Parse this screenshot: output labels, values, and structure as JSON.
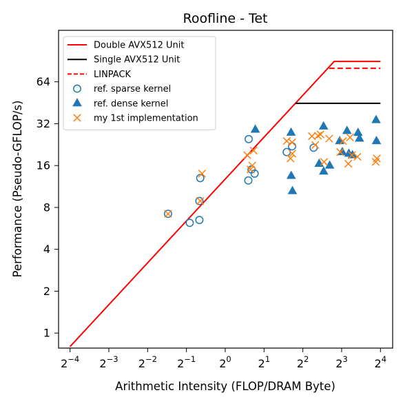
{
  "chart_data": {
    "type": "scatter",
    "title": "Roofline - Tet",
    "xlabel": "Arithmetic Intensity (FLOP/DRAM Byte)",
    "ylabel": "Performance (Pseudo-GFLOP/s)",
    "x_scale": "log2",
    "y_scale": "log2",
    "xlim": [
      0.0509,
      19.9
    ],
    "ylim": [
      0.78,
      150
    ],
    "x_ticks": [
      {
        "value": 0.0625,
        "base": "2",
        "exp": "−4"
      },
      {
        "value": 0.125,
        "base": "2",
        "exp": "−3"
      },
      {
        "value": 0.25,
        "base": "2",
        "exp": "−2"
      },
      {
        "value": 0.5,
        "base": "2",
        "exp": "−1"
      },
      {
        "value": 1,
        "base": "2",
        "exp": "0"
      },
      {
        "value": 2,
        "base": "2",
        "exp": "1"
      },
      {
        "value": 4,
        "base": "2",
        "exp": "2"
      },
      {
        "value": 8,
        "base": "2",
        "exp": "3"
      },
      {
        "value": 16,
        "base": "2",
        "exp": "4"
      }
    ],
    "y_ticks": [
      {
        "value": 1,
        "label": "1"
      },
      {
        "value": 2,
        "label": "2"
      },
      {
        "value": 4,
        "label": "4"
      },
      {
        "value": 8,
        "label": "8"
      },
      {
        "value": 16,
        "label": "16"
      },
      {
        "value": 32,
        "label": "32"
      },
      {
        "value": 64,
        "label": "64"
      }
    ],
    "grid": false,
    "legend_position": "top-left",
    "lines": [
      {
        "name": "Double AVX512 Unit",
        "color": "#ff0000",
        "dash": "solid",
        "x": [
          0.0625,
          7.0,
          16.0
        ],
        "y": [
          0.8,
          89.6,
          89.6
        ]
      },
      {
        "name": "Single AVX512 Unit",
        "color": "#000000",
        "dash": "solid",
        "x": [
          3.5,
          16.0
        ],
        "y": [
          44.8,
          44.8
        ]
      },
      {
        "name": "LINPACK",
        "color": "#ff0000",
        "dash": "dashed",
        "x": [
          6.4,
          16.0
        ],
        "y": [
          80,
          80
        ]
      }
    ],
    "series": [
      {
        "name": "ref. sparse kernel",
        "marker": "circle-open",
        "color": "#1f77b4",
        "x": [
          0.36,
          0.53,
          0.63,
          0.63,
          0.64,
          1.51,
          1.52,
          1.6,
          1.69,
          3.0,
          3.3,
          4.85
        ],
        "y": [
          7.2,
          6.2,
          6.5,
          8.9,
          13.0,
          12.5,
          24.8,
          15.0,
          14.0,
          20.0,
          22.0,
          21.5
        ]
      },
      {
        "name": "ref. dense kernel",
        "marker": "triangle-filled",
        "color": "#1f77b4",
        "x": [
          1.71,
          3.24,
          3.25,
          3.32,
          5.35,
          5.79,
          5.8,
          6.46,
          7.73,
          8.09,
          8.8,
          9.1,
          9.71,
          10.72,
          11.0,
          14.8,
          14.9
        ],
        "y": [
          29.0,
          27.6,
          13.5,
          10.5,
          16.5,
          30.6,
          14.5,
          16.0,
          24.0,
          20.0,
          28.4,
          19.5,
          19.0,
          27.5,
          25.0,
          34.0,
          24.0
        ]
      },
      {
        "name": "my 1st implementation",
        "marker": "x",
        "color": "#ff7f0e",
        "x": [
          0.36,
          0.64,
          0.66,
          1.48,
          1.57,
          1.62,
          1.66,
          3.0,
          3.21,
          3.3,
          3.32,
          4.7,
          5.0,
          5.24,
          5.48,
          5.84,
          6.4,
          7.8,
          8.2,
          9.0,
          9.3,
          9.6,
          10.6,
          14.7,
          15.0
        ],
        "y": [
          7.2,
          8.9,
          14.0,
          19.0,
          15.0,
          16.0,
          20.5,
          24.0,
          18.0,
          23.5,
          19.5,
          26.0,
          22.5,
          26.2,
          26.8,
          17.0,
          25.0,
          20.0,
          24.0,
          16.5,
          25.5,
          19.0,
          18.5,
          17.0,
          18.0
        ]
      }
    ]
  }
}
